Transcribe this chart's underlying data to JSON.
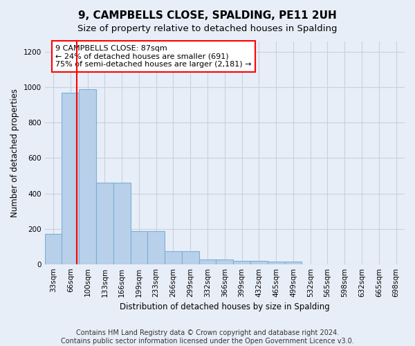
{
  "title": "9, CAMPBELLS CLOSE, SPALDING, PE11 2UH",
  "subtitle": "Size of property relative to detached houses in Spalding",
  "xlabel": "Distribution of detached houses by size in Spalding",
  "ylabel": "Number of detached properties",
  "footer_line1": "Contains HM Land Registry data © Crown copyright and database right 2024.",
  "footer_line2": "Contains public sector information licensed under the Open Government Licence v3.0.",
  "bar_labels": [
    "33sqm",
    "66sqm",
    "100sqm",
    "133sqm",
    "166sqm",
    "199sqm",
    "233sqm",
    "266sqm",
    "299sqm",
    "332sqm",
    "366sqm",
    "399sqm",
    "432sqm",
    "465sqm",
    "499sqm",
    "532sqm",
    "565sqm",
    "598sqm",
    "632sqm",
    "665sqm",
    "698sqm"
  ],
  "bar_values": [
    170,
    970,
    990,
    460,
    460,
    185,
    185,
    75,
    75,
    28,
    28,
    20,
    20,
    13,
    13,
    0,
    0,
    0,
    0,
    0,
    0
  ],
  "bar_color": "#b8d0ea",
  "bar_edgecolor": "#7aafd4",
  "bar_linewidth": 0.8,
  "red_line_x": 1.35,
  "annotation_text": "9 CAMPBELLS CLOSE: 87sqm\n← 24% of detached houses are smaller (691)\n75% of semi-detached houses are larger (2,181) →",
  "annotation_box_facecolor": "white",
  "annotation_box_edgecolor": "red",
  "annotation_fontsize": 8,
  "ylim": [
    0,
    1260
  ],
  "yticks": [
    0,
    200,
    400,
    600,
    800,
    1000,
    1200
  ],
  "grid_color": "#c8d0e0",
  "background_color": "#e8eef8",
  "axes_background": "#e8eef8",
  "title_fontsize": 11,
  "subtitle_fontsize": 9.5,
  "tick_fontsize": 7.5,
  "ylabel_fontsize": 8.5,
  "xlabel_fontsize": 8.5,
  "footer_fontsize": 7
}
